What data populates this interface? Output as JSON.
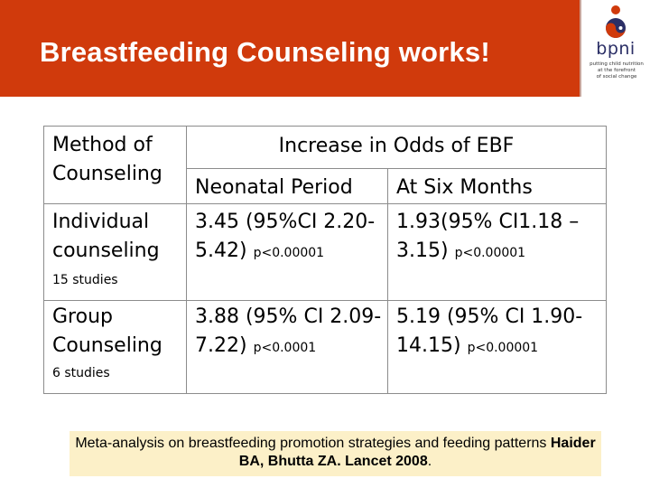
{
  "header": {
    "title": "Breastfeeding  Counseling works!",
    "logo": {
      "wordmark": "bpni",
      "tagline": [
        "putting child nutrition",
        "at the forefront",
        "of social change"
      ]
    }
  },
  "table": {
    "headers": {
      "method": "Method of Counseling",
      "increase": "Increase in Odds of EBF",
      "neonatal": "Neonatal Period",
      "six_months": "At Six Months"
    },
    "rows": [
      {
        "method": "Individual counseling",
        "studies": "15 studies",
        "neonatal_value": "3.45 (95%CI 2.20-5.42)",
        "neonatal_p": "p<0.00001",
        "six_months_value": "1.93(95% CI1.18 – 3.15)",
        "six_months_p": "p<0.00001"
      },
      {
        "method": "Group Counseling",
        "studies": "6 studies",
        "neonatal_value": "3.88 (95% CI 2.09-7.22)",
        "neonatal_p": "p<0.0001",
        "six_months_value": "5.19 (95% CI 1.90-14.15)",
        "six_months_p": "p<0.00001"
      }
    ]
  },
  "citation": {
    "plain": "Meta-analysis on breastfeeding promotion strategies and feeding patterns ",
    "bold": "Haider BA, Bhutta ZA. Lancet 2008",
    "end": "."
  },
  "colors": {
    "header_bg": "#d03a0c",
    "citation_bg": "#fcf0c8",
    "logo_text": "#2b2f66"
  }
}
